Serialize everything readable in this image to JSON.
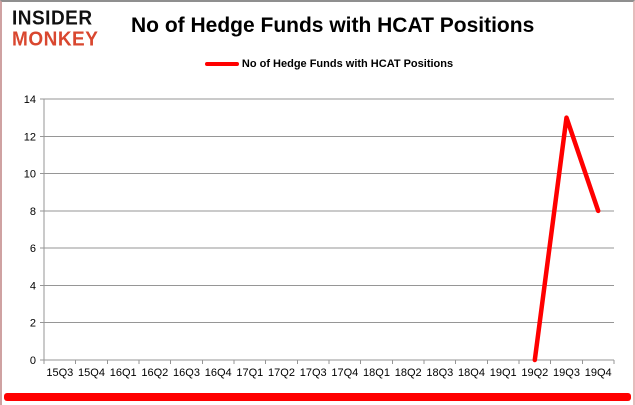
{
  "brand": {
    "line1": "INSIDER",
    "line2": "MONKEY",
    "monkey_color": "#d9472f",
    "insider_color": "#111111"
  },
  "header": {
    "title": "No of Hedge Funds with HCAT Positions"
  },
  "colors": {
    "accent_bar": "#ff0000",
    "grid": "#969696",
    "axis": "#969696",
    "tick_label": "#000000"
  },
  "chart_data": {
    "type": "line",
    "title": "No of Hedge Funds with HCAT Positions",
    "categories": [
      "15Q3",
      "15Q4",
      "16Q1",
      "16Q2",
      "16Q3",
      "16Q4",
      "17Q1",
      "17Q2",
      "17Q3",
      "17Q4",
      "18Q1",
      "18Q2",
      "18Q3",
      "18Q4",
      "19Q1",
      "19Q2",
      "19Q3",
      "19Q4"
    ],
    "series": [
      {
        "name": "No of Hedge Funds with HCAT Positions",
        "color": "#ff0000",
        "values": [
          null,
          null,
          null,
          null,
          null,
          null,
          null,
          null,
          null,
          null,
          null,
          null,
          null,
          null,
          null,
          0,
          13,
          8
        ]
      }
    ],
    "xlabel": "",
    "ylabel": "",
    "ylim": [
      0,
      14
    ],
    "ytick_step": 2,
    "grid": true,
    "legend_position": "top"
  }
}
